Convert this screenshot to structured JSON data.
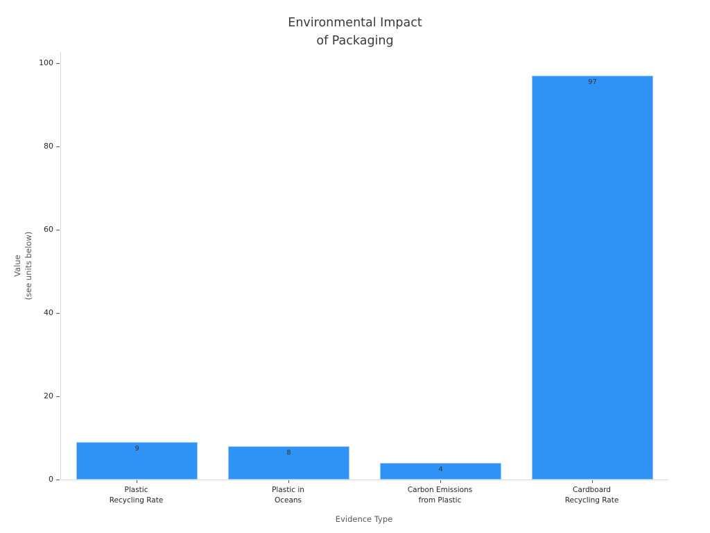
{
  "page": {
    "background": "#ffffff"
  },
  "chart_data": {
    "type": "bar",
    "title": "Environmental Impact\nof Packaging",
    "xlabel": "Evidence Type",
    "ylabel": "Value\n(see units below)",
    "categories": [
      "Plastic\nRecycling Rate",
      "Plastic in\nOceans",
      "Carbon Emissions\nfrom Plastic",
      "Cardboard\nRecycling Rate"
    ],
    "values": [
      9,
      8,
      4,
      97
    ],
    "bar_labels": [
      "9",
      "8",
      "4",
      "97"
    ],
    "ylim": [
      0,
      100
    ],
    "yticks": [
      0,
      20,
      40,
      60,
      80,
      100
    ],
    "grid": false,
    "legend": false,
    "colors": {
      "bar_fill": "#2e93f5",
      "bar_edge": "#9ec9f7",
      "axis_line": "#d9d9d9",
      "tick_mark": "#555555",
      "tick_label": "#262626",
      "axis_title": "#595959",
      "title": "#3a3a3a",
      "bar_label": "#333333"
    }
  }
}
